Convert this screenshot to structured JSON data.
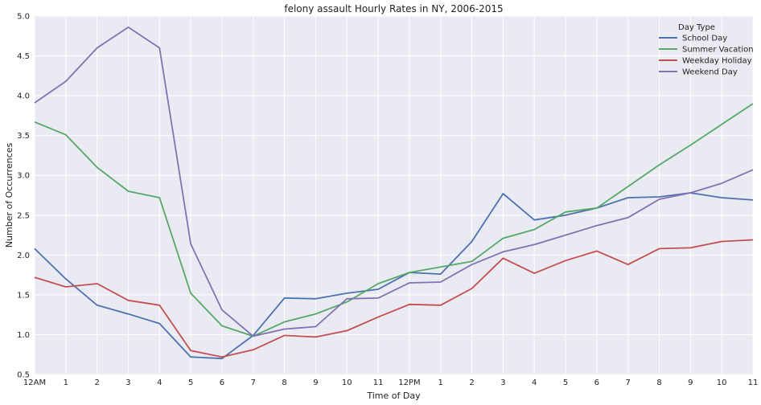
{
  "chart_data": {
    "type": "line",
    "title": "felony assault Hourly Rates in NY, 2006-2015",
    "xlabel": "Time of Day",
    "ylabel": "Number of Occurrences",
    "ylim": [
      0.5,
      5.0
    ],
    "yticks": [
      "0.5",
      "1.0",
      "1.5",
      "2.0",
      "2.5",
      "3.0",
      "3.5",
      "4.0",
      "4.5",
      "5.0"
    ],
    "categories": [
      "12AM",
      "1",
      "2",
      "3",
      "4",
      "5",
      "6",
      "7",
      "8",
      "9",
      "10",
      "11",
      "12PM",
      "1",
      "2",
      "3",
      "4",
      "5",
      "6",
      "7",
      "8",
      "9",
      "10",
      "11"
    ],
    "grid": true,
    "legend": {
      "title": "Day Type",
      "position": "top-right"
    },
    "series": [
      {
        "name": "School Day",
        "color": "#4c72b0",
        "values": [
          2.08,
          1.7,
          1.37,
          1.26,
          1.14,
          0.72,
          0.7,
          0.99,
          1.46,
          1.45,
          1.52,
          1.57,
          1.78,
          1.76,
          2.17,
          2.77,
          2.44,
          2.5,
          2.59,
          2.72,
          2.73,
          2.78,
          2.72,
          2.69
        ]
      },
      {
        "name": "Summer Vacation",
        "color": "#55a868",
        "values": [
          3.67,
          3.51,
          3.1,
          2.8,
          2.72,
          1.52,
          1.11,
          0.98,
          1.16,
          1.26,
          1.41,
          1.64,
          1.78,
          1.85,
          1.92,
          2.21,
          2.32,
          2.54,
          2.59,
          2.86,
          3.13,
          3.38,
          3.64,
          3.9
        ]
      },
      {
        "name": "Weekday Holiday",
        "color": "#c44e52",
        "values": [
          1.72,
          1.6,
          1.64,
          1.43,
          1.37,
          0.8,
          0.72,
          0.81,
          0.99,
          0.97,
          1.05,
          1.22,
          1.38,
          1.37,
          1.58,
          1.96,
          1.77,
          1.93,
          2.05,
          1.88,
          2.08,
          2.09,
          2.17,
          2.19
        ]
      },
      {
        "name": "Weekend Day",
        "color": "#8172b2",
        "values": [
          3.91,
          4.18,
          4.6,
          4.86,
          4.6,
          2.14,
          1.31,
          0.98,
          1.07,
          1.1,
          1.45,
          1.46,
          1.65,
          1.66,
          1.88,
          2.04,
          2.13,
          2.25,
          2.37,
          2.47,
          2.7,
          2.78,
          2.9,
          3.07
        ]
      }
    ]
  }
}
